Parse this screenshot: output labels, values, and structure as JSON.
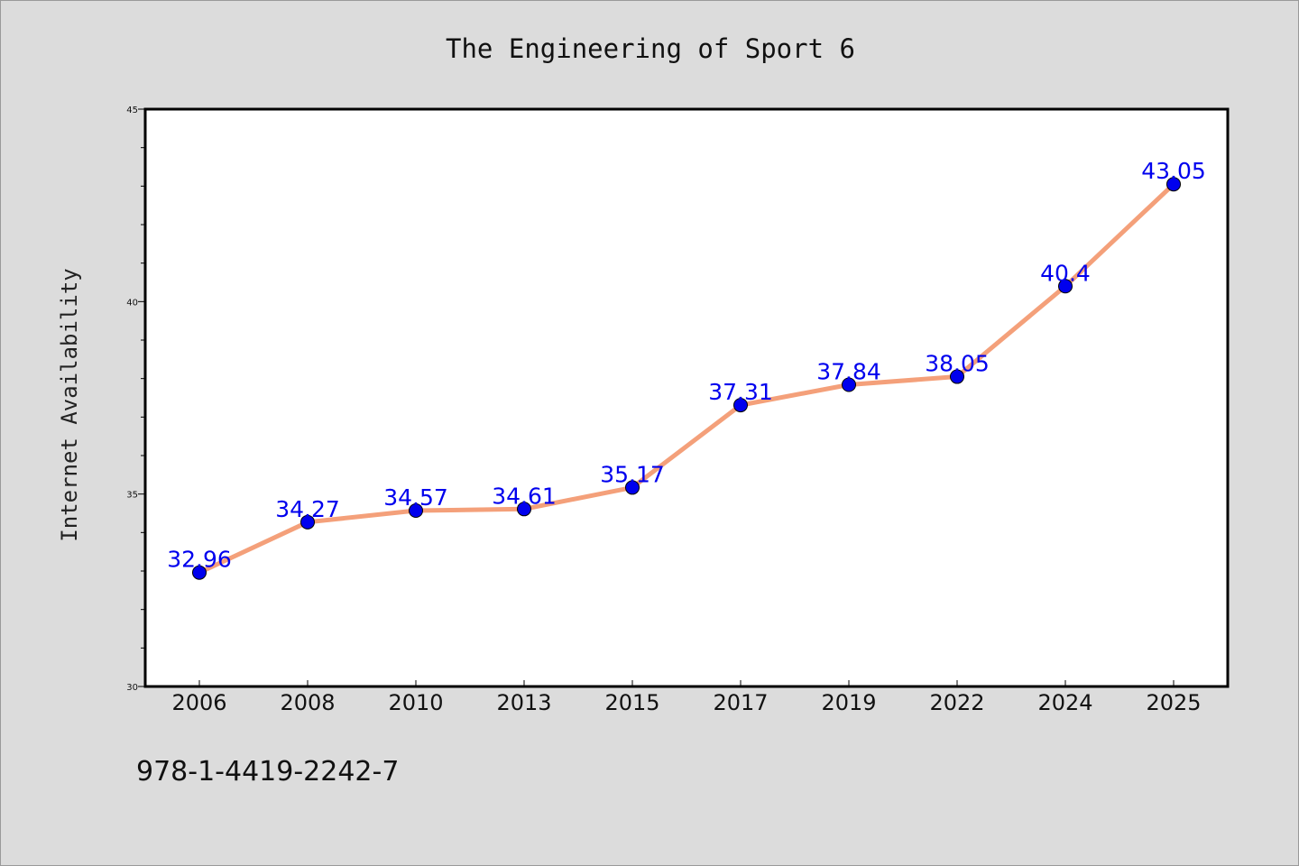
{
  "chart_data": {
    "type": "line",
    "title": "The Engineering of Sport 6",
    "ylabel": "Internet Availability",
    "xlabel": "",
    "categories": [
      "2006",
      "2008",
      "2010",
      "2013",
      "2015",
      "2017",
      "2019",
      "2022",
      "2024",
      "2025"
    ],
    "series": [
      {
        "values": [
          32.96,
          34.27,
          34.57,
          34.61,
          35.17,
          37.31,
          37.84,
          38.05,
          40.4,
          43.05
        ]
      }
    ],
    "data_labels": [
      "32.96",
      "34.27",
      "34.57",
      "34.61",
      "35.17",
      "37.31",
      "37.84",
      "38.05",
      "40.4",
      "43.05"
    ],
    "ylim": [
      30,
      45
    ],
    "yticks": [
      30,
      35,
      40,
      45
    ],
    "grid": false,
    "colors": {
      "line": "#f4a07a",
      "marker": "#0000ee",
      "label": "#0000ee",
      "plot_background": "#ffffff",
      "figure_background": "#dcdcdc"
    }
  },
  "footer": {
    "isbn": "978-1-4419-2242-7"
  }
}
